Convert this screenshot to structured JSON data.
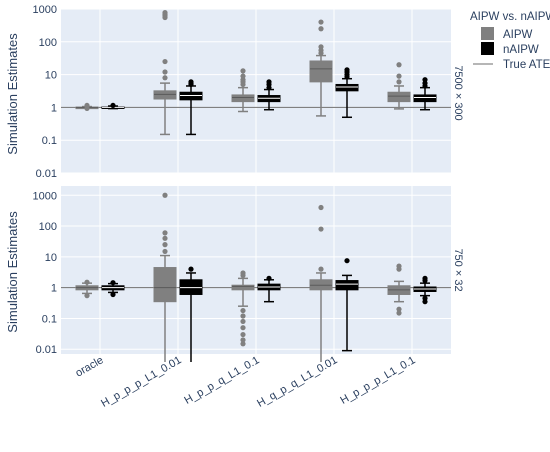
{
  "colors": {
    "plot_bg": "#e5ecf6",
    "grid": "#ffffff",
    "aipw": "#808080",
    "naipw": "#000000",
    "ate_line": "#6e6e6e",
    "text": "#2a3f5f"
  },
  "legend": {
    "title": "AIPW vs. nAIPW",
    "items": [
      "AIPW",
      "nAIPW",
      "True ATE"
    ]
  },
  "chart_data": [
    {
      "type": "box",
      "facet_label": "7500 × 300",
      "ylabel": "Simulation Estimates",
      "y_scale": "log",
      "ylim": [
        0.01,
        1000
      ],
      "y_ticks": [
        "0.01",
        "0.1",
        "1",
        "10",
        "100",
        "1000"
      ],
      "true_ate": 1,
      "categories": [
        "oracle",
        "H_p_p_p_L1_0.01",
        "H_p_p_q_L1_0.1",
        "H_q_p_q_L1_0.01",
        "H_p_p_p_L1_0.1"
      ],
      "series": [
        {
          "name": "AIPW",
          "boxes": [
            {
              "lowerfence": 0.95,
              "q1": 0.98,
              "median": 1.0,
              "q3": 1.02,
              "upperfence": 1.06,
              "outliers": [
                0.93,
                1.1,
                1.15
              ]
            },
            {
              "lowerfence": 0.15,
              "q1": 1.8,
              "median": 2.5,
              "q3": 3.2,
              "upperfence": 5.5,
              "outliers": [
                8,
                12,
                25,
                550,
                620,
                700,
                780
              ]
            },
            {
              "lowerfence": 0.75,
              "q1": 1.5,
              "median": 2.0,
              "q3": 2.4,
              "upperfence": 4,
              "outliers": [
                5,
                6,
                7,
                9,
                13
              ]
            },
            {
              "lowerfence": 0.55,
              "q1": 6,
              "median": 15,
              "q3": 26,
              "upperfence": 38,
              "outliers": [
                45,
                55,
                70,
                250,
                400
              ]
            },
            {
              "lowerfence": 0.9,
              "q1": 1.5,
              "median": 2.2,
              "q3": 2.9,
              "upperfence": 4.5,
              "outliers": [
                6,
                9,
                20
              ]
            }
          ]
        },
        {
          "name": "nAIPW",
          "boxes": [
            {
              "lowerfence": 0.92,
              "q1": 0.97,
              "median": 1.0,
              "q3": 1.03,
              "upperfence": 1.1,
              "outliers": [
                1.15
              ]
            },
            {
              "lowerfence": 0.15,
              "q1": 1.7,
              "median": 2.3,
              "q3": 2.9,
              "upperfence": 4.5,
              "outliers": [
                5,
                5.5,
                6
              ]
            },
            {
              "lowerfence": 0.85,
              "q1": 1.5,
              "median": 1.9,
              "q3": 2.3,
              "upperfence": 3.5,
              "outliers": [
                4,
                5,
                6
              ]
            },
            {
              "lowerfence": 0.5,
              "q1": 3.2,
              "median": 4.2,
              "q3": 5.0,
              "upperfence": 7.5,
              "outliers": [
                8.5,
                10,
                12,
                14
              ]
            },
            {
              "lowerfence": 0.85,
              "q1": 1.5,
              "median": 2.0,
              "q3": 2.4,
              "upperfence": 4,
              "outliers": [
                4.5,
                5.5,
                7
              ]
            }
          ]
        }
      ]
    },
    {
      "type": "box",
      "facet_label": "750 × 32",
      "ylabel": "Simulation Estimates",
      "y_scale": "log",
      "ylim": [
        0.007,
        2000
      ],
      "y_ticks": [
        "0.01",
        "0.1",
        "1",
        "10",
        "100",
        "1000"
      ],
      "true_ate": 1,
      "categories": [
        "oracle",
        "H_p_p_p_L1_0.01",
        "H_p_p_q_L1_0.1",
        "H_q_p_q_L1_0.01",
        "H_p_p_p_L1_0.1"
      ],
      "series": [
        {
          "name": "AIPW",
          "boxes": [
            {
              "lowerfence": 0.65,
              "q1": 0.85,
              "median": 1.0,
              "q3": 1.15,
              "upperfence": 1.4,
              "outliers": [
                0.55,
                1.5
              ]
            },
            {
              "lowerfence": 0.0001,
              "q1": 0.35,
              "median": 1.0,
              "q3": 4.5,
              "upperfence": 11,
              "outliers": [
                15,
                25,
                40,
                60,
                1000
              ]
            },
            {
              "lowerfence": 0.25,
              "q1": 0.85,
              "median": 1.1,
              "q3": 1.2,
              "upperfence": 2.0,
              "outliers": [
                0.015,
                0.02,
                0.03,
                0.05,
                0.08,
                0.12,
                0.18,
                2.5,
                3.0
              ]
            },
            {
              "lowerfence": 0.0001,
              "q1": 0.85,
              "median": 1.2,
              "q3": 1.8,
              "upperfence": 3.0,
              "outliers": [
                4,
                80,
                400
              ]
            },
            {
              "lowerfence": 0.35,
              "q1": 0.6,
              "median": 0.85,
              "q3": 1.15,
              "upperfence": 1.6,
              "outliers": [
                0.15,
                0.2,
                4.0,
                5.0
              ]
            }
          ]
        },
        {
          "name": "nAIPW",
          "boxes": [
            {
              "lowerfence": 0.7,
              "q1": 0.85,
              "median": 1.0,
              "q3": 1.15,
              "upperfence": 1.35,
              "outliers": [
                0.6,
                1.45
              ]
            },
            {
              "lowerfence": 0.0001,
              "q1": 0.6,
              "median": 1.0,
              "q3": 1.8,
              "upperfence": 3.0,
              "outliers": [
                4.0
              ]
            },
            {
              "lowerfence": 0.35,
              "q1": 0.85,
              "median": 1.05,
              "q3": 1.3,
              "upperfence": 1.8,
              "outliers": [
                2.0
              ]
            },
            {
              "lowerfence": 0.009,
              "q1": 0.85,
              "median": 1.3,
              "q3": 1.7,
              "upperfence": 2.5,
              "outliers": [
                7.5
              ]
            },
            {
              "lowerfence": 0.55,
              "q1": 0.75,
              "median": 0.9,
              "q3": 1.05,
              "upperfence": 1.4,
              "outliers": [
                0.35,
                0.45,
                1.7,
                2.0
              ]
            }
          ]
        }
      ]
    }
  ]
}
